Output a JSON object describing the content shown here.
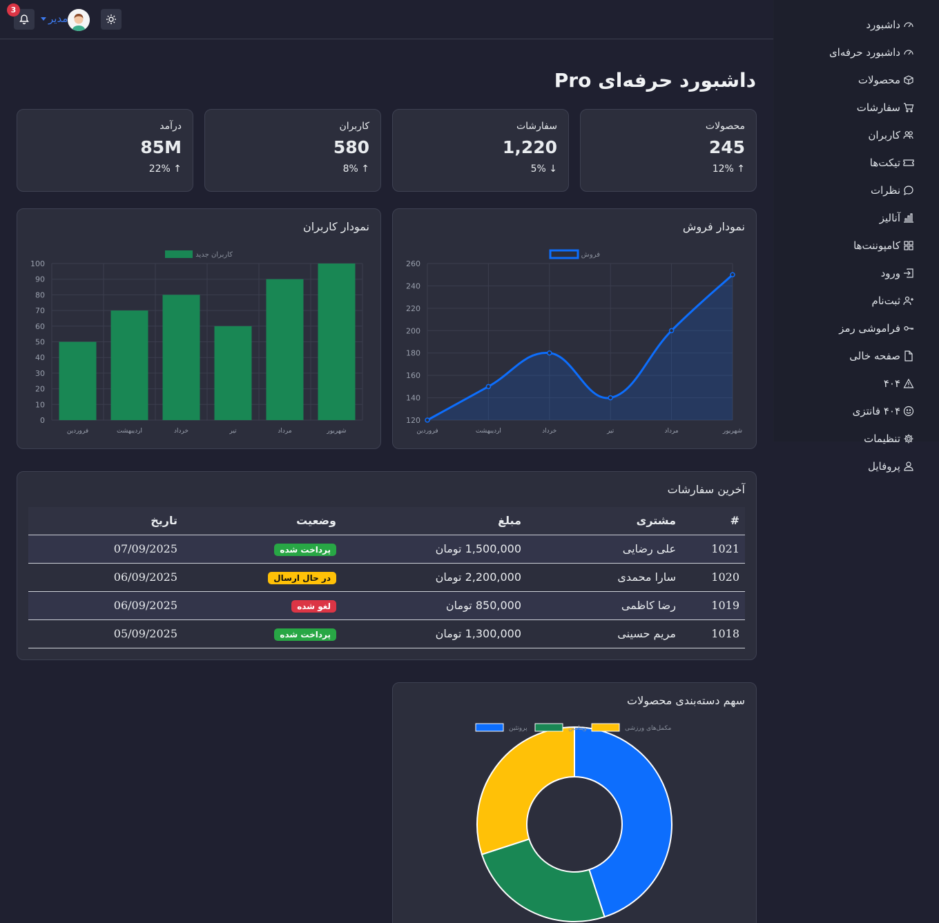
{
  "topbar": {
    "notification_count": "3",
    "user_name": "مدیر"
  },
  "sidebar": {
    "items": [
      {
        "label": "داشبورد",
        "icon": "speedometer-icon"
      },
      {
        "label": "داشبورد حرفه‌ای",
        "icon": "speedometer-icon"
      },
      {
        "label": "محصولات",
        "icon": "box-icon"
      },
      {
        "label": "سفارشات",
        "icon": "cart-icon"
      },
      {
        "label": "کاربران",
        "icon": "users-icon"
      },
      {
        "label": "تیکت‌ها",
        "icon": "ticket-icon"
      },
      {
        "label": "نظرات",
        "icon": "chat-icon"
      },
      {
        "label": "آنالیز",
        "icon": "bar-chart-icon"
      },
      {
        "label": "کامپوننت‌ها",
        "icon": "grid-icon"
      },
      {
        "label": "ورود",
        "icon": "login-icon"
      },
      {
        "label": "ثبت‌نام",
        "icon": "user-plus-icon"
      },
      {
        "label": "فراموشی رمز",
        "icon": "key-icon"
      },
      {
        "label": "صفحه خالی",
        "icon": "file-icon"
      },
      {
        "label": "۴۰۴",
        "icon": "warning-icon"
      },
      {
        "label": "۴۰۴ فانتزی",
        "icon": "smile-icon"
      },
      {
        "label": "تنظیمات",
        "icon": "gear-icon"
      },
      {
        "label": "پروفایل",
        "icon": "person-icon"
      }
    ]
  },
  "page": {
    "title": "داشبورد حرفه‌ای Pro"
  },
  "stats": [
    {
      "label": "محصولات",
      "value": "245",
      "change": "12%",
      "direction": "up"
    },
    {
      "label": "سفارشات",
      "value": "1,220",
      "change": "5%",
      "direction": "down"
    },
    {
      "label": "کاربران",
      "value": "580",
      "change": "8%",
      "direction": "up"
    },
    {
      "label": "درآمد",
      "value": "85M",
      "change": "22%",
      "direction": "up"
    }
  ],
  "sales_card": {
    "title": "نمودار فروش"
  },
  "users_card": {
    "title": "نمودار کاربران"
  },
  "orders": {
    "title": "آخرین سفارشات",
    "headers": [
      "#",
      "مشتری",
      "مبلغ",
      "وضعیت",
      "تاریخ"
    ],
    "rows": [
      {
        "id": "1021",
        "customer": "علی رضایی",
        "amount": "1,500,000 تومان",
        "status": "پرداخت شده",
        "status_color": "#28a745",
        "date": "07/09/2025"
      },
      {
        "id": "1020",
        "customer": "سارا محمدی",
        "amount": "2,200,000 تومان",
        "status": "در حال ارسال",
        "status_color": "#ffc107",
        "date": "06/09/2025"
      },
      {
        "id": "1019",
        "customer": "رضا کاظمی",
        "amount": "850,000 تومان",
        "status": "لغو شده",
        "status_color": "#dc3545",
        "date": "06/09/2025"
      },
      {
        "id": "1018",
        "customer": "مریم حسینی",
        "amount": "1,300,000 تومان",
        "status": "پرداخت شده",
        "status_color": "#28a745",
        "date": "05/09/2025"
      }
    ]
  },
  "category_card": {
    "title": "سهم دسته‌بندی محصولات"
  },
  "chart_data": [
    {
      "type": "line",
      "categories": [
        "فروردین",
        "اردیبهشت",
        "خرداد",
        "تیر",
        "مرداد",
        "شهریور"
      ],
      "series": [
        {
          "name": "فروش",
          "values": [
            120,
            150,
            180,
            140,
            200,
            250
          ],
          "color": "#0d6efd"
        }
      ],
      "ylim": [
        120,
        260
      ],
      "yticks": [
        120,
        140,
        160,
        180,
        200,
        220,
        240,
        260
      ],
      "legend": "top",
      "grid": true
    },
    {
      "type": "bar",
      "categories": [
        "فروردین",
        "اردیبهشت",
        "خرداد",
        "تیر",
        "مرداد",
        "شهریور"
      ],
      "series": [
        {
          "name": "کاربران جدید",
          "values": [
            50,
            70,
            80,
            60,
            90,
            100
          ],
          "color": "#198754"
        }
      ],
      "ylim": [
        0,
        100
      ],
      "yticks": [
        0,
        10,
        20,
        30,
        40,
        50,
        60,
        70,
        80,
        90,
        100
      ],
      "legend": "top",
      "grid": true
    },
    {
      "type": "pie",
      "style": "doughnut",
      "slices": [
        {
          "label": "پروتئین",
          "value": 45,
          "color": "#0d6efd"
        },
        {
          "label": "ویتامین",
          "value": 25,
          "color": "#198754"
        },
        {
          "label": "مکمل‌های ورزشی",
          "value": 30,
          "color": "#ffc107"
        }
      ],
      "legend": "top"
    }
  ]
}
